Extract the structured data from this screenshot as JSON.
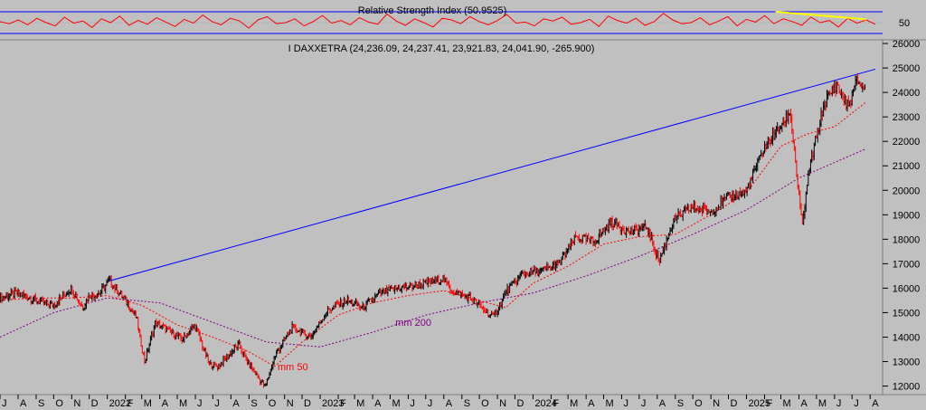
{
  "chart_data": [
    {
      "type": "line",
      "title": "Relative Strength Index (50.9525)",
      "ylim": [
        0,
        100
      ],
      "levels": [
        30,
        70
      ],
      "y_ticks": [
        50
      ],
      "value": 50.9525,
      "series": [
        {
          "color": "#ff0000",
          "values": [
            52,
            48,
            55,
            46,
            58,
            50,
            44,
            60,
            49,
            53,
            41,
            57,
            50,
            62,
            45,
            54,
            47,
            59,
            51,
            43,
            56,
            49,
            64,
            52,
            46,
            58,
            53,
            40,
            55,
            61,
            48,
            50,
            57,
            44,
            52,
            63,
            49,
            54,
            46,
            59,
            51,
            47,
            66,
            53,
            45,
            57,
            50,
            42,
            58,
            55,
            48,
            61,
            52,
            46,
            54,
            65,
            49,
            51,
            44,
            57,
            53,
            60,
            47,
            50,
            56,
            43,
            62,
            54,
            49,
            58,
            45,
            52,
            67,
            55,
            48,
            50,
            59,
            46,
            53,
            61,
            44,
            56,
            51,
            63,
            48,
            57,
            52,
            45,
            60,
            50,
            54,
            42,
            58,
            49,
            55,
            47
          ]
        }
      ],
      "trendline": {
        "color": "#ffff00",
        "x": [
          "2025-02-20",
          "2025-07-25"
        ],
        "y": [
          70,
          56
        ]
      }
    },
    {
      "type": "line",
      "title": "I DAXXETRA (24,236.09, 24,237.41, 23,921.83, 24,041.90, -265.900)",
      "y_ticks": [
        12000,
        13000,
        14000,
        15000,
        16000,
        17000,
        18000,
        19000,
        20000,
        21000,
        22000,
        23000,
        24000,
        25000,
        26000
      ],
      "ylim": [
        11650,
        26150
      ],
      "x_start": "2021-07-01",
      "x_end": "2025-08-10",
      "x_ticks": [
        {
          "d": "2021-07-01",
          "l": "J"
        },
        {
          "d": "2021-08-01",
          "l": "A"
        },
        {
          "d": "2021-09-01",
          "l": "S"
        },
        {
          "d": "2021-10-01",
          "l": "O"
        },
        {
          "d": "2021-11-01",
          "l": "N"
        },
        {
          "d": "2021-12-01",
          "l": "D"
        },
        {
          "d": "2022-01-01",
          "l": "2022"
        },
        {
          "d": "2022-02-01",
          "l": "F"
        },
        {
          "d": "2022-03-01",
          "l": "M"
        },
        {
          "d": "2022-04-01",
          "l": "A"
        },
        {
          "d": "2022-05-01",
          "l": "M"
        },
        {
          "d": "2022-06-01",
          "l": "J"
        },
        {
          "d": "2022-07-01",
          "l": "J"
        },
        {
          "d": "2022-08-01",
          "l": "A"
        },
        {
          "d": "2022-09-01",
          "l": "S"
        },
        {
          "d": "2022-10-01",
          "l": "O"
        },
        {
          "d": "2022-11-01",
          "l": "N"
        },
        {
          "d": "2022-12-01",
          "l": "D"
        },
        {
          "d": "2023-01-01",
          "l": "2023"
        },
        {
          "d": "2023-02-01",
          "l": "F"
        },
        {
          "d": "2023-03-01",
          "l": "M"
        },
        {
          "d": "2023-04-01",
          "l": "A"
        },
        {
          "d": "2023-05-01",
          "l": "M"
        },
        {
          "d": "2023-06-01",
          "l": "J"
        },
        {
          "d": "2023-07-01",
          "l": "J"
        },
        {
          "d": "2023-08-01",
          "l": "A"
        },
        {
          "d": "2023-09-01",
          "l": "S"
        },
        {
          "d": "2023-10-01",
          "l": "O"
        },
        {
          "d": "2023-11-01",
          "l": "N"
        },
        {
          "d": "2023-12-01",
          "l": "D"
        },
        {
          "d": "2024-01-01",
          "l": "2024"
        },
        {
          "d": "2024-02-01",
          "l": "F"
        },
        {
          "d": "2024-03-01",
          "l": "M"
        },
        {
          "d": "2024-04-01",
          "l": "A"
        },
        {
          "d": "2024-05-01",
          "l": "M"
        },
        {
          "d": "2024-06-01",
          "l": "J"
        },
        {
          "d": "2024-07-01",
          "l": "J"
        },
        {
          "d": "2024-08-01",
          "l": "A"
        },
        {
          "d": "2024-09-01",
          "l": "S"
        },
        {
          "d": "2024-10-01",
          "l": "O"
        },
        {
          "d": "2024-11-01",
          "l": "N"
        },
        {
          "d": "2024-12-01",
          "l": "D"
        },
        {
          "d": "2025-01-01",
          "l": "2025"
        },
        {
          "d": "2025-02-01",
          "l": "F"
        },
        {
          "d": "2025-03-01",
          "l": "M"
        },
        {
          "d": "2025-04-01",
          "l": "A"
        },
        {
          "d": "2025-05-01",
          "l": "M"
        },
        {
          "d": "2025-06-01",
          "l": "J"
        },
        {
          "d": "2025-07-01",
          "l": "J"
        },
        {
          "d": "2025-08-01",
          "l": "A"
        }
      ],
      "price": {
        "color": "#000000",
        "down_color": "#ff0000",
        "x": [
          "2021-07-01",
          "2021-08-01",
          "2021-09-01",
          "2021-10-01",
          "2021-11-01",
          "2021-11-20",
          "2021-12-01",
          "2021-12-20",
          "2022-01-05",
          "2022-02-01",
          "2022-02-20",
          "2022-03-07",
          "2022-03-25",
          "2022-04-20",
          "2022-05-10",
          "2022-06-01",
          "2022-06-25",
          "2022-07-10",
          "2022-08-15",
          "2022-09-01",
          "2022-09-29",
          "2022-10-15",
          "2022-11-15",
          "2022-12-15",
          "2023-01-15",
          "2023-02-15",
          "2023-03-15",
          "2023-04-15",
          "2023-05-15",
          "2023-06-15",
          "2023-07-31",
          "2023-08-15",
          "2023-09-15",
          "2023-10-25",
          "2023-11-15",
          "2023-12-15",
          "2024-01-15",
          "2024-02-15",
          "2024-03-15",
          "2024-04-15",
          "2024-05-15",
          "2024-06-15",
          "2024-07-15",
          "2024-08-05",
          "2024-08-30",
          "2024-09-30",
          "2024-10-31",
          "2024-11-30",
          "2024-12-31",
          "2025-01-31",
          "2025-02-28",
          "2025-03-18",
          "2025-04-07",
          "2025-04-20",
          "2025-05-15",
          "2025-06-05",
          "2025-06-25",
          "2025-07-10",
          "2025-07-25"
        ],
        "y": [
          15600,
          15800,
          15500,
          15300,
          16000,
          15200,
          15700,
          15800,
          16300,
          15500,
          14800,
          13000,
          14600,
          14200,
          13900,
          14500,
          12900,
          12800,
          13700,
          12900,
          11950,
          13200,
          14400,
          14000,
          15100,
          15500,
          15200,
          15800,
          16000,
          16100,
          16400,
          15900,
          15600,
          14800,
          15800,
          16600,
          16700,
          17000,
          18100,
          17900,
          18700,
          18300,
          18500,
          17100,
          18800,
          19300,
          19100,
          19700,
          19900,
          21700,
          22600,
          23200,
          18500,
          21000,
          23600,
          24300,
          23400,
          24500,
          24050
        ]
      },
      "ma50": {
        "name": "mm 50",
        "color": "#ff0000",
        "x": [
          "2021-07-01",
          "2021-09-01",
          "2021-11-01",
          "2022-01-01",
          "2022-03-01",
          "2022-05-01",
          "2022-07-01",
          "2022-09-01",
          "2022-10-15",
          "2022-12-01",
          "2023-02-01",
          "2023-04-01",
          "2023-06-01",
          "2023-08-01",
          "2023-10-01",
          "2023-11-15",
          "2024-01-01",
          "2024-03-01",
          "2024-05-01",
          "2024-07-01",
          "2024-09-01",
          "2024-11-01",
          "2025-01-01",
          "2025-03-01",
          "2025-04-15",
          "2025-06-01",
          "2025-07-25"
        ],
        "y": [
          15500,
          15600,
          15600,
          15700,
          15300,
          14500,
          14000,
          13400,
          12800,
          13800,
          14900,
          15400,
          15700,
          15900,
          15500,
          15200,
          16200,
          16900,
          17800,
          18100,
          18200,
          19000,
          19900,
          21800,
          22300,
          22600,
          23600
        ]
      },
      "ma200": {
        "name": "mm 200",
        "color": "#800080",
        "x": [
          "2021-07-01",
          "2021-10-01",
          "2022-01-01",
          "2022-04-01",
          "2022-07-01",
          "2022-10-01",
          "2023-01-01",
          "2023-04-01",
          "2023-07-01",
          "2023-10-01",
          "2024-01-01",
          "2024-04-01",
          "2024-07-01",
          "2024-10-01",
          "2025-01-01",
          "2025-04-01",
          "2025-07-25"
        ],
        "y": [
          14000,
          15000,
          15600,
          15400,
          14600,
          13800,
          13600,
          14200,
          14900,
          15400,
          15800,
          16500,
          17300,
          18200,
          19200,
          20500,
          21700
        ]
      },
      "trendline": {
        "color": "#0000ff",
        "x": [
          "2022-01-05",
          "2025-08-10"
        ],
        "y": [
          16300,
          24950
        ]
      }
    }
  ]
}
